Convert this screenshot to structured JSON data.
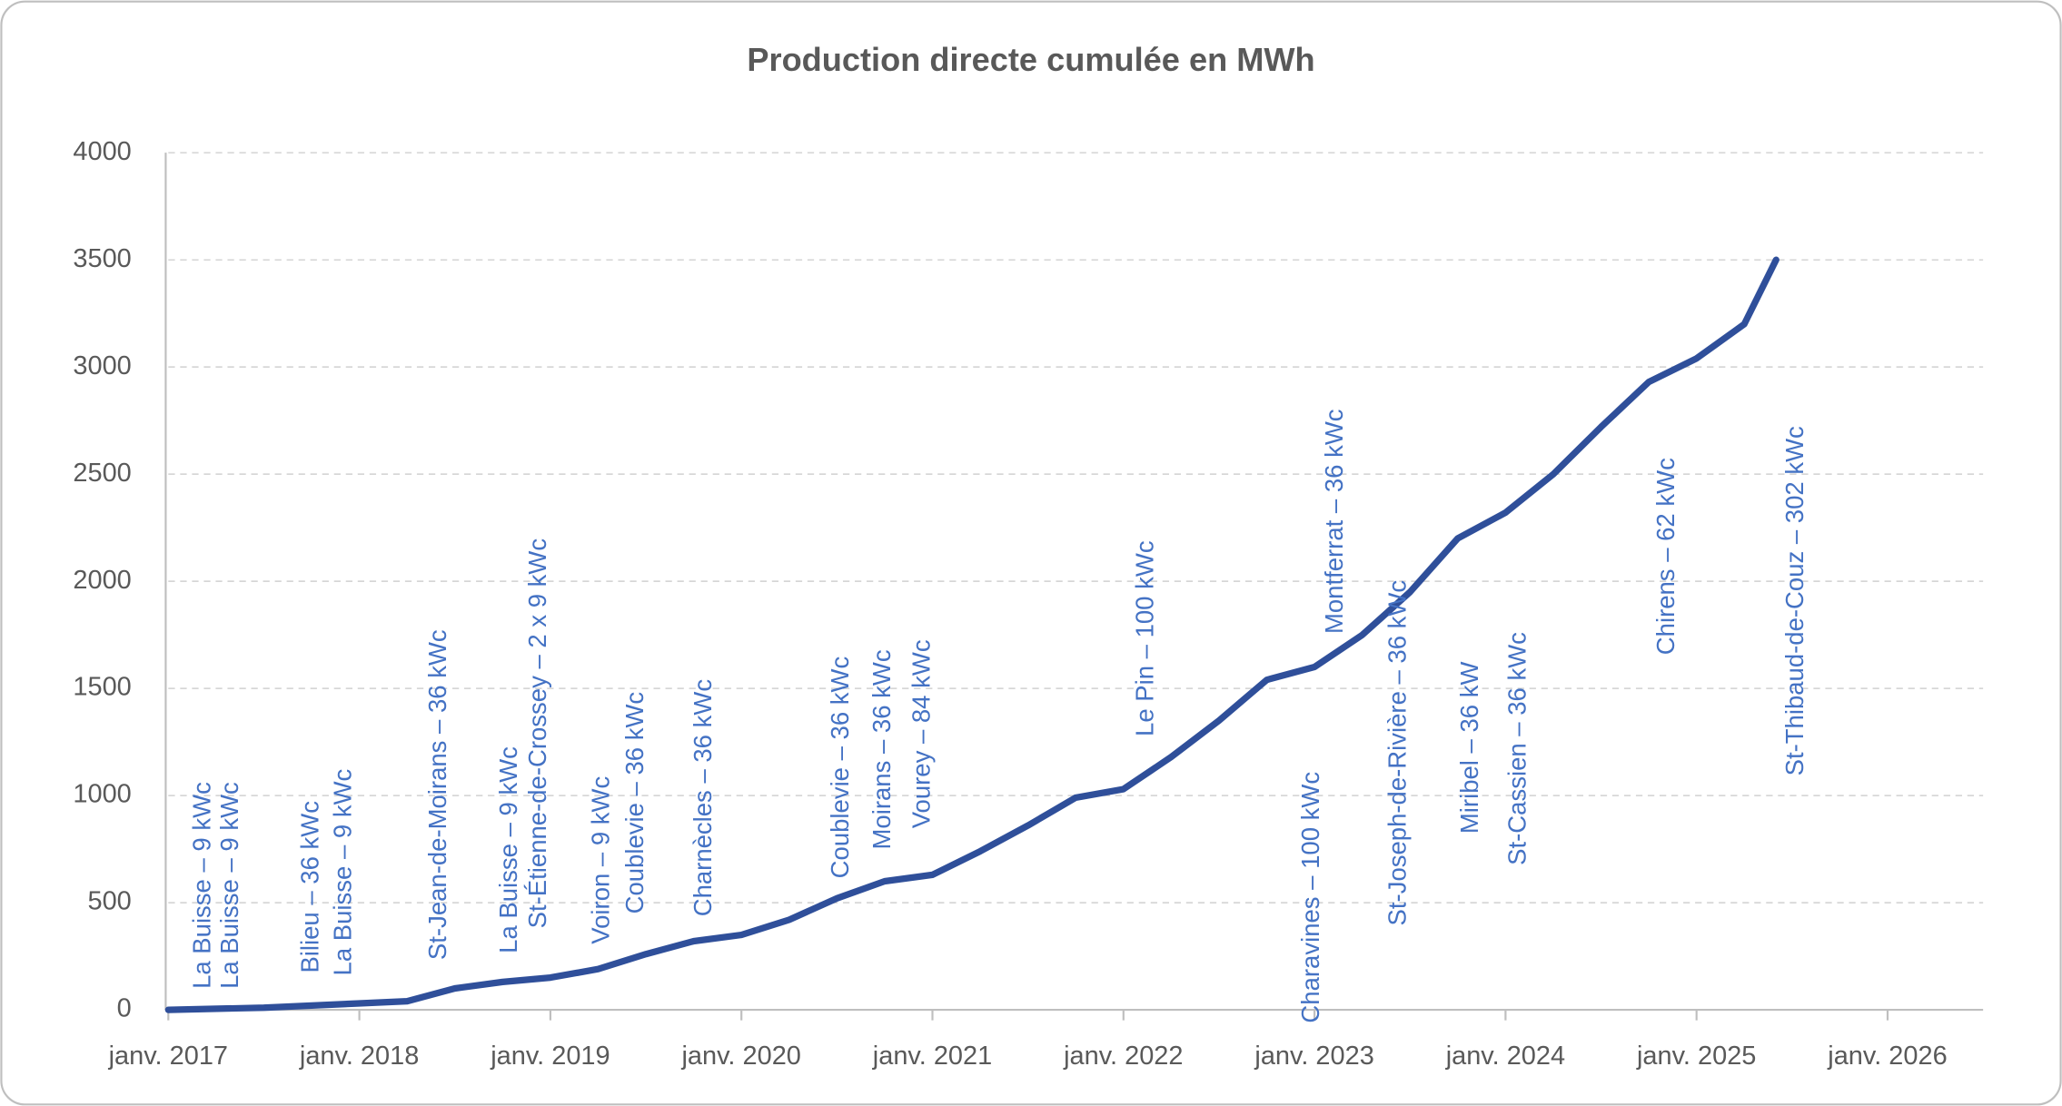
{
  "chart_data": {
    "type": "line",
    "title": "Production directe cumulée en MWh",
    "x": [
      "2017-01",
      "2017-07",
      "2018-01",
      "2018-04",
      "2018-07",
      "2018-10",
      "2019-01",
      "2019-04",
      "2019-07",
      "2019-10",
      "2020-01",
      "2020-04",
      "2020-07",
      "2020-10",
      "2021-01",
      "2021-04",
      "2021-07",
      "2021-10",
      "2022-01",
      "2022-04",
      "2022-07",
      "2022-10",
      "2023-01",
      "2023-04",
      "2023-07",
      "2023-10",
      "2024-01",
      "2024-04",
      "2024-07",
      "2024-10",
      "2025-01",
      "2025-04",
      "2025-06"
    ],
    "series": [
      {
        "name": "Production directe cumulée",
        "color": "#2f4f9a",
        "values": [
          0,
          10,
          30,
          40,
          100,
          130,
          150,
          190,
          260,
          320,
          350,
          420,
          520,
          600,
          630,
          740,
          860,
          990,
          1030,
          1180,
          1350,
          1540,
          1600,
          1750,
          1950,
          2200,
          2320,
          2500,
          2720,
          2930,
          3040,
          3200,
          3500
        ]
      }
    ],
    "xlim": [
      "2017-01",
      "2026-07"
    ],
    "xticks": [
      {
        "value": "2017-01",
        "label": "janv. 2017"
      },
      {
        "value": "2018-01",
        "label": "janv. 2018"
      },
      {
        "value": "2019-01",
        "label": "janv. 2019"
      },
      {
        "value": "2020-01",
        "label": "janv. 2020"
      },
      {
        "value": "2021-01",
        "label": "janv. 2021"
      },
      {
        "value": "2022-01",
        "label": "janv. 2022"
      },
      {
        "value": "2023-01",
        "label": "janv. 2023"
      },
      {
        "value": "2024-01",
        "label": "janv. 2024"
      },
      {
        "value": "2025-01",
        "label": "janv. 2025"
      },
      {
        "value": "2026-01",
        "label": "janv. 2026"
      }
    ],
    "ylim": [
      0,
      4000
    ],
    "yticks": [
      0,
      500,
      1000,
      1500,
      2000,
      2500,
      3000,
      3500,
      4000
    ],
    "grid": true,
    "annotations": [
      "La Buisse – 9 kWc",
      "La Buisse – 9 kWc",
      "Bilieu – 36 kWc",
      "La Buisse – 9 kWc",
      "St-Jean-de-Moirans  – 36 kWc",
      "La Buisse – 9 kWc",
      "St-Étienne-de-Crossey – 2 x 9 kWc",
      "Voiron  – 9 kWc",
      "Coublevie – 36 kWc",
      "Charnècles – 36 kWc",
      "Coublevie – 36 kWc",
      "Moirans – 36 kWc",
      "Vourey – 84 kWc",
      "Le Pin – 100 kWc",
      "Charavines – 100 kWc",
      "Montferrat – 36 kWc",
      "St-Joseph-de-Rivière  – 36 kWc",
      "Miribel – 36 kW",
      "St-Cassien – 36 kWc",
      "Chirens – 62 kWc",
      "St-Thibaud-de-Couz – 302 kWc"
    ]
  }
}
